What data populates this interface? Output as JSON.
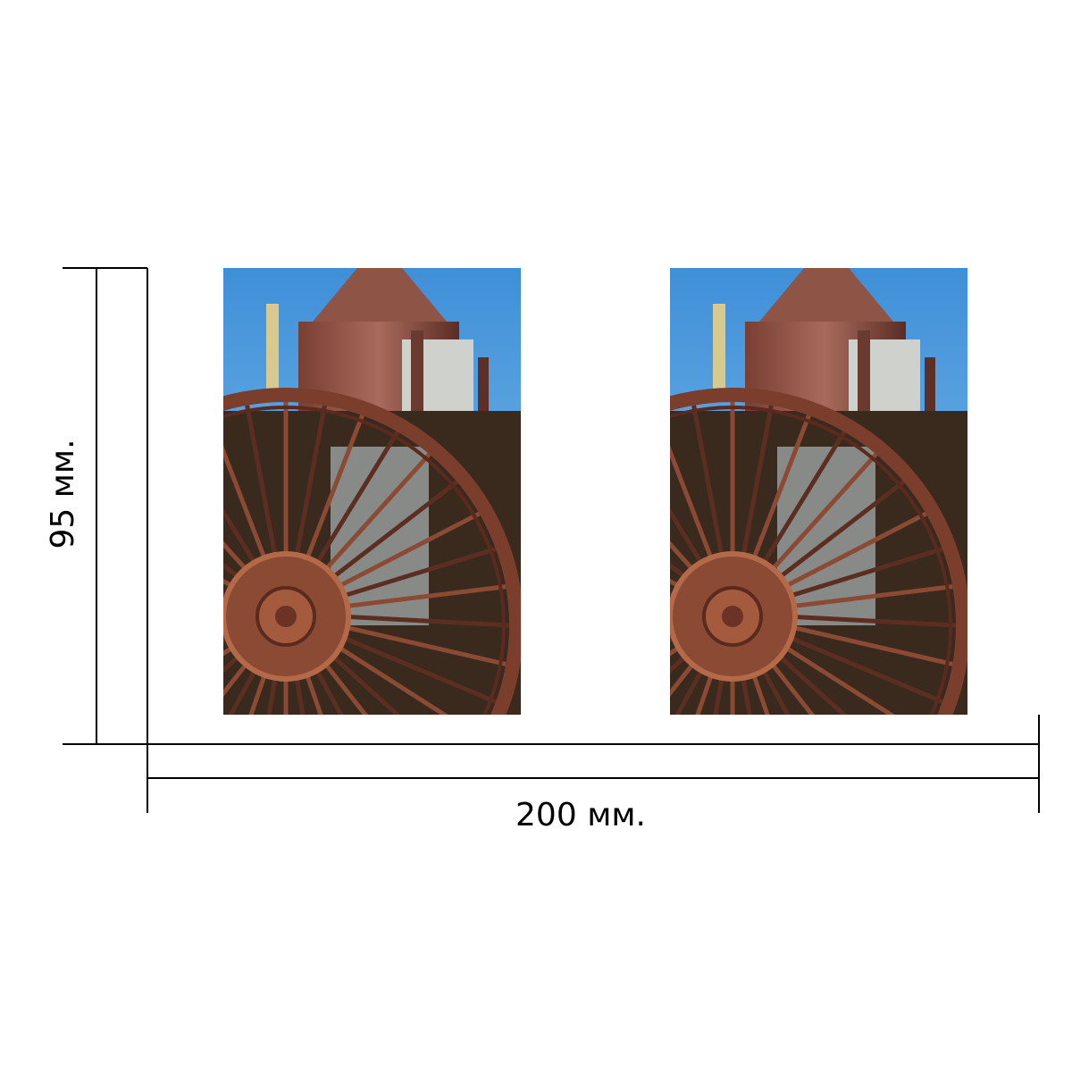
{
  "height_label": "95 мм.",
  "width_label": "200 мм."
}
